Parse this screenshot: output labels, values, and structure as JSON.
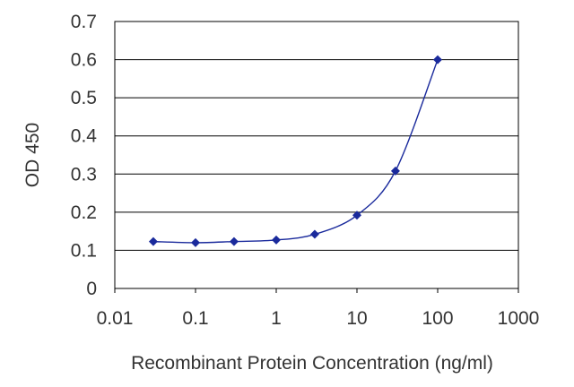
{
  "chart_data": {
    "type": "line",
    "title": "",
    "xlabel": "Recombinant Protein Concentration (ng/ml)",
    "ylabel": "OD 450",
    "x_scale": "log",
    "xlim": [
      0.01,
      1000
    ],
    "ylim": [
      0,
      0.7
    ],
    "x_ticks": [
      0.01,
      0.1,
      1,
      10,
      100,
      1000
    ],
    "x_tick_labels": [
      "0.01",
      "0.1",
      "1",
      "10",
      "100",
      "1000"
    ],
    "y_ticks": [
      0,
      0.1,
      0.2,
      0.3,
      0.4,
      0.5,
      0.6,
      0.7
    ],
    "y_tick_labels": [
      "0",
      "0.1",
      "0.2",
      "0.3",
      "0.4",
      "0.5",
      "0.6",
      "0.7"
    ],
    "grid": "horizontal",
    "series": [
      {
        "x": [
          0.03,
          0.1,
          0.3,
          1,
          3,
          10,
          30,
          100
        ],
        "y": [
          0.123,
          0.12,
          0.123,
          0.127,
          0.142,
          0.192,
          0.308,
          0.6
        ],
        "color": "#1a2a9c",
        "marker": "diamond"
      }
    ]
  }
}
